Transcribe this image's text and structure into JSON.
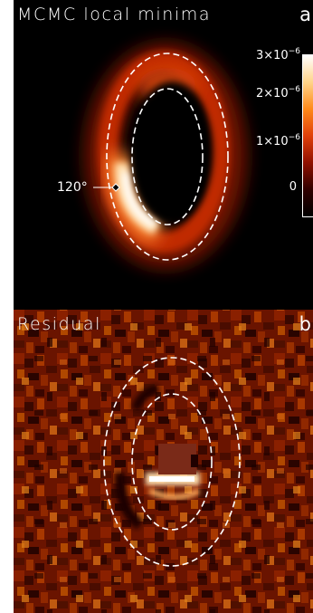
{
  "panel_a": {
    "title": "MCMC local minima",
    "letter": "a",
    "marker_label": "120°",
    "colorbar": {
      "ticks": [
        {
          "base": "3×10",
          "exp": "−6"
        },
        {
          "base": "2×10",
          "exp": "−6"
        },
        {
          "base": "1×10",
          "exp": "−6"
        },
        {
          "base": "0",
          "exp": ""
        }
      ],
      "colors": [
        "#ffffff",
        "#ffd48a",
        "#ff8a1a",
        "#e0400a",
        "#901000",
        "#300000",
        "#000000"
      ]
    }
  },
  "panel_b": {
    "title": "Residual",
    "letter": "b"
  },
  "colors": {
    "ring_line": "#ffffff",
    "residual_bg": "#5a1000",
    "residual_dark": "#1a0000",
    "residual_bright": "#ffffff"
  }
}
